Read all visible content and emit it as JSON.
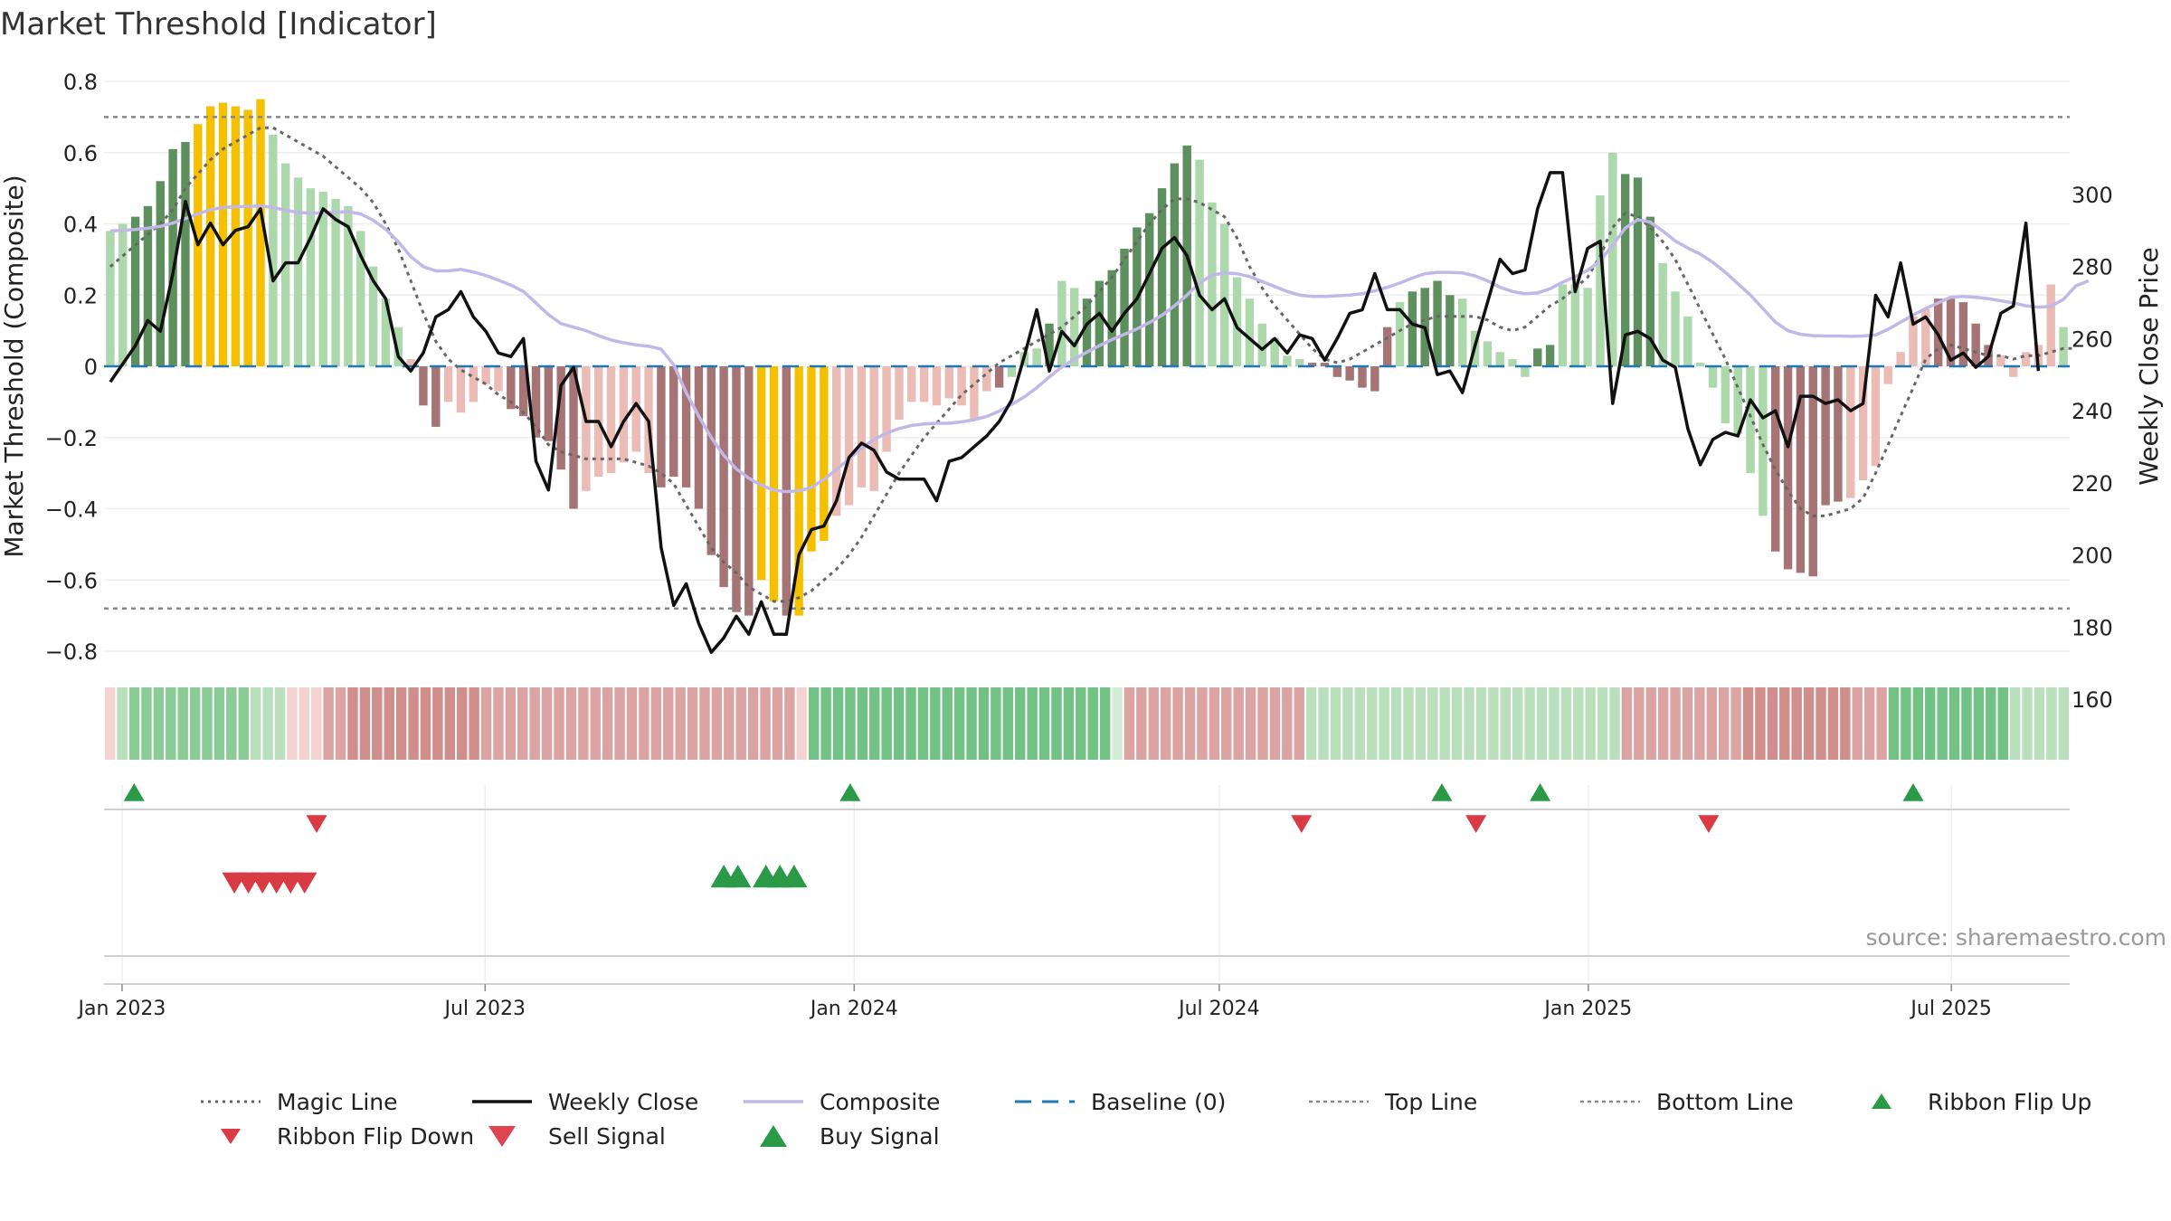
{
  "title": "Market Threshold [Indicator]",
  "source": "source: sharemaestro.com",
  "colors": {
    "bull_dark": "#5e8f5e",
    "bull_light": "#acd8ac",
    "bear_dark": "#a67474",
    "bear_light": "#ebbbb5",
    "extreme": "#f5c000",
    "close_line": "#111111",
    "composite_line": "#c2b8e8",
    "magic_line": "#666666",
    "baseline": "#1f77b4",
    "ref_line": "#888888",
    "signal_up": "#2a9a48",
    "signal_down": "#d93a44"
  },
  "chart_data": {
    "type": "bar",
    "title": "Market Threshold [Indicator]",
    "ylabel": "Market Threshold (Composite)",
    "y2label": "Weekly Close Price",
    "ylim": [
      -0.8,
      0.8
    ],
    "y2lim": [
      160,
      300
    ],
    "yticks": [
      "0.8",
      "0.6",
      "0.4",
      "0.2",
      "0",
      "−0.2",
      "−0.4",
      "−0.6",
      "−0.8"
    ],
    "y2ticks": [
      "300",
      "280",
      "260",
      "240",
      "220",
      "200",
      "180",
      "160"
    ],
    "xticks": [
      "Jan 2023",
      "Jul 2023",
      "Jan 2024",
      "Jul 2024",
      "Jan 2025",
      "Jul 2025"
    ],
    "x_start": "2022-12-23",
    "x_end": "2025-08-29",
    "top_line": 0.7,
    "bottom_line": -0.68,
    "baseline": 0,
    "composite_values": [
      0.38,
      0.4,
      0.42,
      0.45,
      0.52,
      0.61,
      0.63,
      0.68,
      0.73,
      0.74,
      0.73,
      0.72,
      0.75,
      0.65,
      0.57,
      0.53,
      0.5,
      0.49,
      0.47,
      0.45,
      0.38,
      0.28,
      0.19,
      0.11,
      0.02,
      -0.11,
      -0.17,
      -0.1,
      -0.13,
      -0.1,
      -0.05,
      -0.07,
      -0.12,
      -0.14,
      -0.2,
      -0.21,
      -0.29,
      -0.4,
      -0.35,
      -0.31,
      -0.3,
      -0.27,
      -0.24,
      -0.3,
      -0.34,
      -0.31,
      -0.34,
      -0.4,
      -0.53,
      -0.62,
      -0.69,
      -0.7,
      -0.6,
      -0.66,
      -0.7,
      -0.7,
      -0.52,
      -0.49,
      -0.42,
      -0.39,
      -0.34,
      -0.35,
      -0.24,
      -0.15,
      -0.1,
      -0.1,
      -0.11,
      -0.09,
      -0.11,
      -0.15,
      -0.07,
      -0.06,
      -0.03,
      0.04,
      0.05,
      0.12,
      0.24,
      0.22,
      0.19,
      0.24,
      0.27,
      0.33,
      0.39,
      0.43,
      0.5,
      0.57,
      0.62,
      0.58,
      0.46,
      0.4,
      0.25,
      0.19,
      0.12,
      0.08,
      0.03,
      0.02,
      0.01,
      0.01,
      -0.03,
      -0.04,
      -0.06,
      -0.07,
      0.11,
      0.18,
      0.21,
      0.22,
      0.24,
      0.2,
      0.19,
      0.1,
      0.07,
      0.04,
      0.02,
      -0.03,
      0.05,
      0.06,
      0.23,
      0.23,
      0.22,
      0.48,
      0.6,
      0.54,
      0.53,
      0.42,
      0.29,
      0.21,
      0.14,
      0.01,
      -0.06,
      -0.16,
      -0.19,
      -0.3,
      -0.42,
      -0.52,
      -0.57,
      -0.58,
      -0.59,
      -0.39,
      -0.38,
      -0.37,
      -0.32,
      -0.28,
      -0.05,
      0.04,
      0.14,
      0.16,
      0.19,
      0.19,
      0.18,
      0.12,
      0.06,
      0.03,
      -0.03,
      0.04,
      0.06,
      0.23,
      0.11
    ],
    "bar_color_codes": "LLDDDDDEEEEEELLLLLLLLLLLlmmlllllmmmmmmllllllmmmmmmmmEEmEEElllllllllllllmLLLDLLDDDDDDDDDLLLLLLLLLmmmmmmmLDDDDLLLLLLDDLLLLLDDDLLLLLLLLLmmmmmmlllllllmmmmmlllllLLLLLLLLLLLL",
    "weekly_close": [
      248,
      253,
      258,
      265,
      262,
      278,
      298,
      286,
      292,
      286,
      290,
      291,
      296,
      276,
      281,
      281,
      288,
      296,
      293,
      291,
      283,
      276,
      271,
      255,
      251,
      256,
      266,
      268,
      273,
      266,
      262,
      256,
      255,
      260,
      226,
      218,
      247,
      252,
      237,
      237,
      230,
      237,
      242,
      237,
      202,
      186,
      192,
      181,
      173,
      177,
      183,
      178,
      187,
      178,
      178,
      200,
      207,
      208,
      215,
      227,
      231,
      229,
      223,
      221,
      221,
      221,
      215,
      226,
      227,
      230,
      233,
      237,
      243,
      255,
      268,
      251,
      262,
      258,
      264,
      267,
      262,
      267,
      271,
      278,
      285,
      288,
      283,
      272,
      268,
      271,
      263,
      260,
      257,
      260,
      256,
      261,
      260,
      254,
      260,
      267,
      268,
      278,
      268,
      268,
      264,
      263,
      250,
      251,
      245,
      258,
      270,
      282,
      278,
      279,
      296,
      306,
      306,
      273,
      285,
      287,
      242,
      261,
      262,
      260,
      254,
      252,
      235,
      225,
      232,
      234,
      233,
      243,
      238,
      240,
      230,
      244,
      244,
      242,
      243,
      240,
      242,
      272,
      266,
      281,
      264,
      266,
      261,
      254,
      256,
      252,
      255,
      267,
      269,
      292,
      251
    ],
    "composite_line": [
      0.38,
      0.382,
      0.384,
      0.388,
      0.393,
      0.402,
      0.415,
      0.428,
      0.44,
      0.446,
      0.448,
      0.449,
      0.45,
      0.446,
      0.438,
      0.432,
      0.43,
      0.431,
      0.433,
      0.434,
      0.428,
      0.41,
      0.385,
      0.35,
      0.308,
      0.28,
      0.268,
      0.268,
      0.272,
      0.265,
      0.255,
      0.242,
      0.228,
      0.21,
      0.178,
      0.145,
      0.12,
      0.11,
      0.1,
      0.086,
      0.074,
      0.066,
      0.06,
      0.056,
      0.048,
      0.004,
      -0.074,
      -0.14,
      -0.2,
      -0.25,
      -0.288,
      -0.314,
      -0.334,
      -0.348,
      -0.352,
      -0.35,
      -0.34,
      -0.318,
      -0.29,
      -0.26,
      -0.23,
      -0.205,
      -0.188,
      -0.175,
      -0.166,
      -0.162,
      -0.16,
      -0.16,
      -0.156,
      -0.15,
      -0.141,
      -0.126,
      -0.107,
      -0.086,
      -0.06,
      -0.03,
      -0.002,
      0.02,
      0.04,
      0.058,
      0.075,
      0.09,
      0.105,
      0.123,
      0.143,
      0.17,
      0.2,
      0.234,
      0.256,
      0.262,
      0.26,
      0.252,
      0.238,
      0.224,
      0.21,
      0.2,
      0.196,
      0.196,
      0.198,
      0.2,
      0.204,
      0.212,
      0.222,
      0.234,
      0.248,
      0.26,
      0.264,
      0.264,
      0.262,
      0.254,
      0.24,
      0.222,
      0.21,
      0.204,
      0.206,
      0.218,
      0.236,
      0.252,
      0.27,
      0.296,
      0.34,
      0.388,
      0.412,
      0.405,
      0.38,
      0.352,
      0.332,
      0.315,
      0.292,
      0.264,
      0.232,
      0.2,
      0.162,
      0.124,
      0.1,
      0.09,
      0.086,
      0.085,
      0.085,
      0.084,
      0.085,
      0.088,
      0.104,
      0.124,
      0.144,
      0.162,
      0.178,
      0.194,
      0.196,
      0.194,
      0.19,
      0.184,
      0.178,
      0.17,
      0.166,
      0.168,
      0.188,
      0.226,
      0.24
    ],
    "magic_line": [
      0.28,
      0.31,
      0.34,
      0.37,
      0.4,
      0.44,
      0.5,
      0.54,
      0.58,
      0.61,
      0.63,
      0.65,
      0.67,
      0.67,
      0.65,
      0.63,
      0.61,
      0.59,
      0.56,
      0.53,
      0.5,
      0.46,
      0.4,
      0.33,
      0.24,
      0.15,
      0.07,
      0.02,
      -0.01,
      -0.03,
      -0.05,
      -0.08,
      -0.1,
      -0.13,
      -0.17,
      -0.22,
      -0.24,
      -0.25,
      -0.26,
      -0.26,
      -0.26,
      -0.26,
      -0.27,
      -0.28,
      -0.3,
      -0.33,
      -0.39,
      -0.45,
      -0.51,
      -0.55,
      -0.58,
      -0.62,
      -0.64,
      -0.66,
      -0.66,
      -0.65,
      -0.63,
      -0.6,
      -0.57,
      -0.53,
      -0.48,
      -0.42,
      -0.36,
      -0.3,
      -0.25,
      -0.2,
      -0.16,
      -0.12,
      -0.08,
      -0.05,
      -0.02,
      0.01,
      0.03,
      0.05,
      0.07,
      0.09,
      0.11,
      0.14,
      0.17,
      0.21,
      0.25,
      0.3,
      0.35,
      0.4,
      0.44,
      0.47,
      0.47,
      0.46,
      0.44,
      0.42,
      0.36,
      0.28,
      0.22,
      0.17,
      0.13,
      0.09,
      0.05,
      0.02,
      0.01,
      0.02,
      0.04,
      0.06,
      0.08,
      0.1,
      0.12,
      0.13,
      0.14,
      0.14,
      0.14,
      0.14,
      0.13,
      0.11,
      0.1,
      0.11,
      0.14,
      0.17,
      0.19,
      0.22,
      0.25,
      0.31,
      0.39,
      0.43,
      0.42,
      0.39,
      0.35,
      0.3,
      0.23,
      0.16,
      0.09,
      0.02,
      -0.06,
      -0.14,
      -0.22,
      -0.29,
      -0.35,
      -0.4,
      -0.42,
      -0.42,
      -0.41,
      -0.4,
      -0.37,
      -0.3,
      -0.22,
      -0.14,
      -0.06,
      0.02,
      0.05,
      0.06,
      0.05,
      0.04,
      0.03,
      0.03,
      0.02,
      0.03,
      0.03,
      0.04,
      0.05,
      0.05
    ],
    "ribbon_color_codes": "qbBBBBBBBBBBbbbqqqrrRRRRRRRRRRRrrrrrrrrrrrrrrrrrrrrrrrrrrqGGGGGGGGGGGGGGGGGGGGGGGGGgrrrrrrrrrrrrrrrbbbbbbbbbbbbbbbbbbbbbbbbbbrrrrrrrrrrRRRRRRRRRrrrGGGGGGGGGGbbbbb",
    "ribbon_palette": {
      "q": "#f3d3d0",
      "b": "#b9dfbd",
      "B": "#8bcb95",
      "G": "#72c185",
      "g": "#d2ecd6",
      "r": "#dba3a1",
      "R": "#d08e8c"
    },
    "ribbon_flip_up": [
      "2023-01-07",
      "2023-12-30",
      "2024-10-20",
      "2024-12-08",
      "2025-06-12"
    ],
    "ribbon_flip_down": [
      "2023-04-08",
      "2024-08-11",
      "2024-11-06",
      "2025-03-02"
    ],
    "sell_signal": [
      "2023-02-26",
      "2023-03-05",
      "2023-03-12",
      "2023-03-19",
      "2023-03-26",
      "2023-04-02"
    ],
    "buy_signal": [
      "2023-10-28",
      "2023-11-04",
      "2023-11-18",
      "2023-11-25",
      "2023-12-02"
    ]
  },
  "legend": [
    {
      "key": "magic",
      "label": "Magic Line"
    },
    {
      "key": "close",
      "label": "Weekly Close"
    },
    {
      "key": "composite",
      "label": "Composite"
    },
    {
      "key": "baseline",
      "label": "Baseline (0)"
    },
    {
      "key": "topline",
      "label": "Top Line"
    },
    {
      "key": "bottomline",
      "label": "Bottom Line"
    },
    {
      "key": "flipup",
      "label": "Ribbon Flip Up"
    },
    {
      "key": "flipdown",
      "label": "Ribbon Flip Down"
    },
    {
      "key": "sell",
      "label": "Sell Signal"
    },
    {
      "key": "buy",
      "label": "Buy Signal"
    }
  ]
}
